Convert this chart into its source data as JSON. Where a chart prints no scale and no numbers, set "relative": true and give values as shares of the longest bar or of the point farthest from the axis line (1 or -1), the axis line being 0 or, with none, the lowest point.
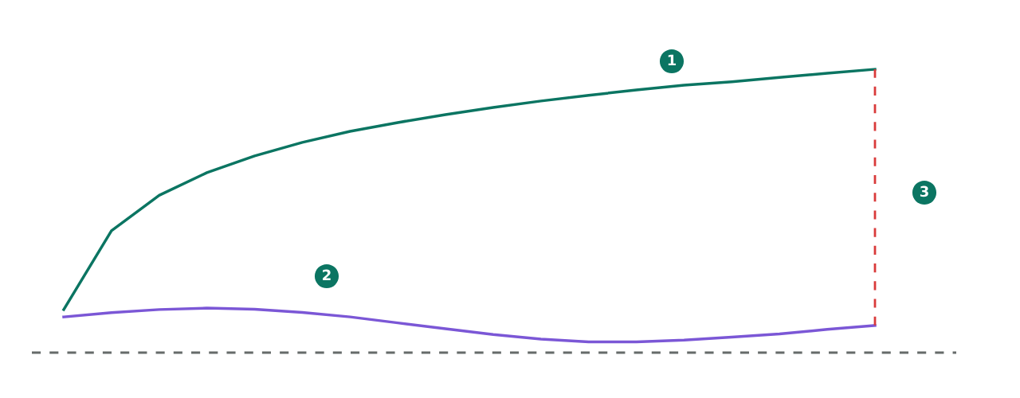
{
  "chart_data": {
    "type": "line",
    "relative": true,
    "categories": [
      null,
      null,
      null,
      null,
      null,
      null,
      null,
      null,
      null,
      null,
      null,
      null,
      null,
      null,
      null,
      null,
      null,
      null
    ],
    "series": [
      {
        "color": "#0b7562",
        "values": [
          0.152,
          0.43,
          0.555,
          0.635,
          0.694,
          0.742,
          0.781,
          0.812,
          0.84,
          0.865,
          0.888,
          0.908,
          0.927,
          0.944,
          0.956,
          0.971,
          0.986,
          1.0
        ]
      },
      {
        "color": "#7b57d6",
        "values": [
          0.126,
          0.141,
          0.152,
          0.157,
          0.153,
          0.142,
          0.126,
          0.105,
          0.084,
          0.064,
          0.048,
          0.038,
          0.038,
          0.044,
          0.055,
          0.066,
          0.082,
          0.096
        ]
      }
    ],
    "ref_lines": [
      {
        "axis": "y",
        "value": 0,
        "color": "#666b6a",
        "line_style": "dashed"
      }
    ],
    "annotations": [
      "1",
      "2",
      "3"
    ],
    "grid": false,
    "legend": false,
    "marker": "none",
    "line_style": "solid"
  }
}
